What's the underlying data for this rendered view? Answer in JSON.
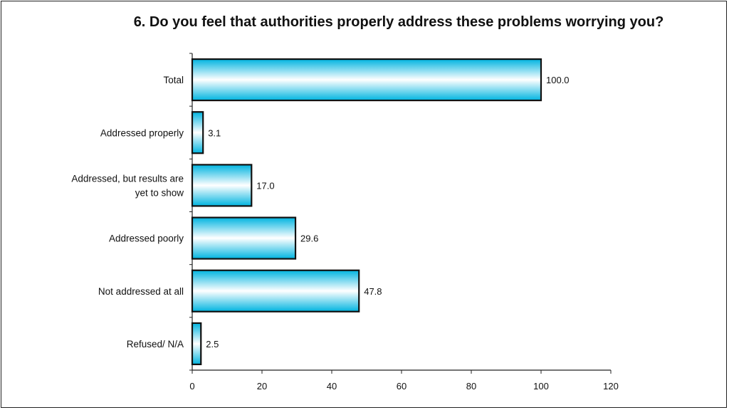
{
  "chart_data": {
    "type": "bar",
    "orientation": "horizontal",
    "title": "6. Do you feel that authorities properly address these problems worrying you?",
    "categories": [
      "Total",
      "Addressed properly",
      "Addressed, but results are yet to show",
      "Addressed poorly",
      "Not addressed at all",
      "Refused/ N/A"
    ],
    "category_lines": [
      [
        "Total"
      ],
      [
        "Addressed properly"
      ],
      [
        "Addressed, but results are",
        "yet to show"
      ],
      [
        "Addressed poorly"
      ],
      [
        "Not addressed at all"
      ],
      [
        "Refused/ N/A"
      ]
    ],
    "values": [
      100.0,
      3.1,
      17.0,
      29.6,
      47.8,
      2.5
    ],
    "value_labels": [
      "100.0",
      "3.1",
      "17.0",
      "29.6",
      "47.8",
      "2.5"
    ],
    "xlim": [
      0,
      120
    ],
    "xticks": [
      0,
      20,
      40,
      60,
      80,
      100,
      120
    ],
    "xlabel": "",
    "ylabel": "",
    "grid": false,
    "bar_color": "#00b4e0",
    "bar_highlight": "#ffffff"
  }
}
